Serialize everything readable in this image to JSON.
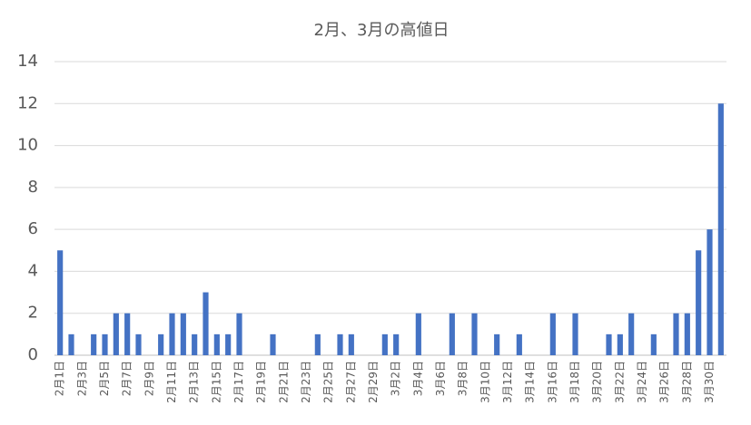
{
  "chart_data": {
    "type": "bar",
    "title": "2月、3月の高値日",
    "categories": [
      "2月1日",
      null,
      "2月3日",
      null,
      "2月5日",
      null,
      "2月7日",
      null,
      "2月9日",
      null,
      "2月11日",
      null,
      "2月13日",
      null,
      "2月15日",
      null,
      "2月17日",
      null,
      "2月19日",
      null,
      "2月21日",
      null,
      "2月23日",
      null,
      "2月25日",
      null,
      "2月27日",
      null,
      "2月29日",
      null,
      "3月2日",
      null,
      "3月4日",
      null,
      "3月6日",
      null,
      "3月8日",
      null,
      "3月10日",
      null,
      "3月12日",
      null,
      "3月14日",
      null,
      "3月16日",
      null,
      "3月18日",
      null,
      "3月20日",
      null,
      "3月22日",
      null,
      "3月24日",
      null,
      "3月26日",
      null,
      "3月28日",
      null,
      "3月30日",
      null
    ],
    "values": [
      5,
      1,
      0,
      1,
      1,
      2,
      2,
      1,
      0,
      1,
      2,
      2,
      1,
      3,
      1,
      1,
      2,
      0,
      0,
      1,
      0,
      0,
      0,
      1,
      0,
      1,
      1,
      0,
      0,
      1,
      1,
      0,
      2,
      0,
      0,
      2,
      0,
      2,
      0,
      1,
      0,
      1,
      0,
      0,
      2,
      0,
      2,
      0,
      0,
      1,
      1,
      2,
      0,
      1,
      0,
      2,
      2,
      5,
      6,
      12
    ],
    "color": "#4472c4",
    "ylim": [
      0,
      14
    ],
    "yticks": [
      0,
      2,
      4,
      6,
      8,
      10,
      12,
      14
    ],
    "grid": true
  }
}
